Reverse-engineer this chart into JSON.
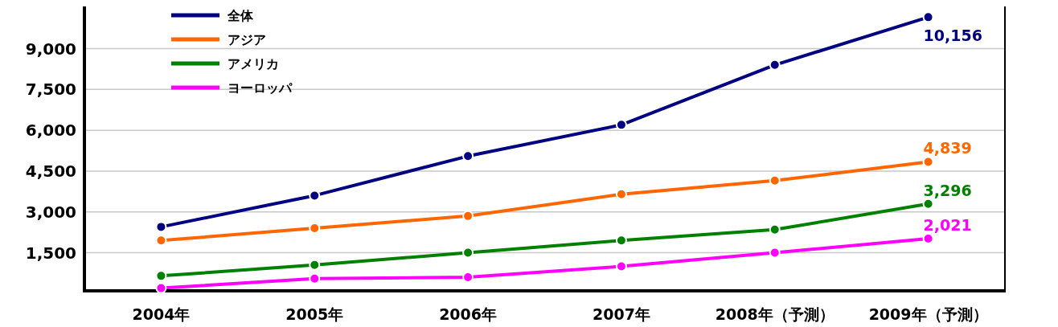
{
  "chart_data": {
    "type": "line",
    "categories": [
      "2004年",
      "2005年",
      "2006年",
      "2007年",
      "2008年（予測）",
      "2009年（予測）"
    ],
    "series": [
      {
        "name": "全体",
        "color": "#000080",
        "values": [
          2450,
          3600,
          5050,
          6200,
          8400,
          10156
        ],
        "value_labels": [
          null,
          null,
          null,
          null,
          null,
          "10,156"
        ]
      },
      {
        "name": "アジア",
        "color": "#ff6600",
        "values": [
          1950,
          2400,
          2850,
          3650,
          4150,
          4839
        ],
        "value_labels": [
          null,
          null,
          null,
          null,
          null,
          "4,839"
        ]
      },
      {
        "name": "アメリカ",
        "color": "#008000",
        "values": [
          650,
          1050,
          1500,
          1950,
          2350,
          3296
        ],
        "value_labels": [
          null,
          null,
          null,
          null,
          null,
          "3,296"
        ]
      },
      {
        "name": "ヨーロッパ",
        "color": "#ff00ff",
        "values": [
          200,
          550,
          600,
          1000,
          1500,
          2021
        ],
        "value_labels": [
          null,
          null,
          null,
          null,
          null,
          "2,021"
        ]
      }
    ],
    "ylim": [
      100,
      10550
    ],
    "yticks": [
      {
        "value": 1500,
        "label": "1,500"
      },
      {
        "value": 3000,
        "label": "3,000"
      },
      {
        "value": 4500,
        "label": "4,500"
      },
      {
        "value": 6000,
        "label": "6,000"
      },
      {
        "value": 7500,
        "label": "7,500"
      },
      {
        "value": 9000,
        "label": "9,000"
      }
    ],
    "grid": "y",
    "legend": "top left",
    "marker": "circle",
    "line_style": "solid"
  }
}
